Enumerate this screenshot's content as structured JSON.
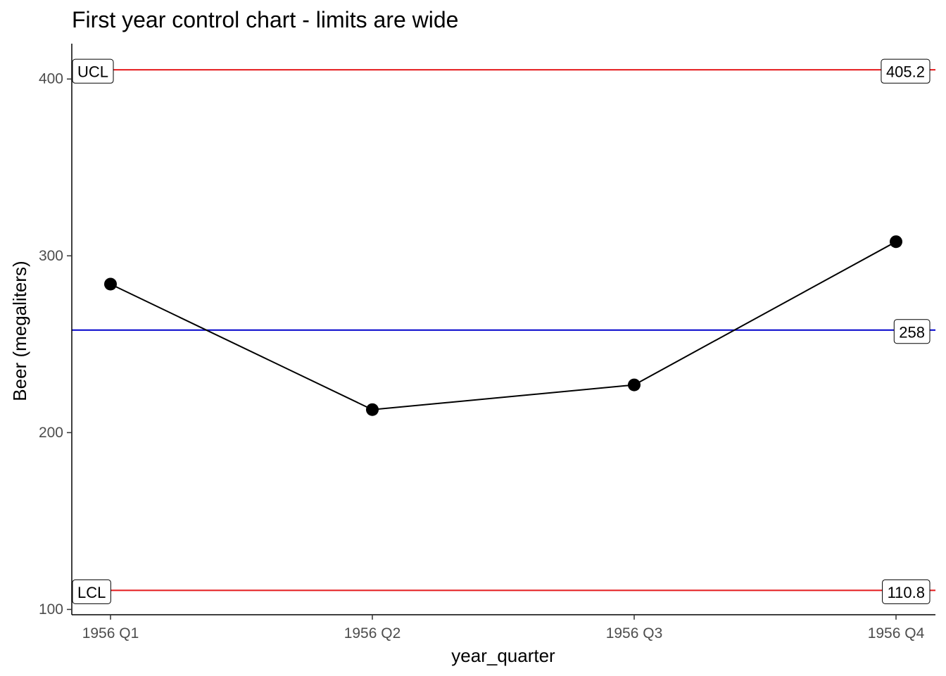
{
  "chart_data": {
    "type": "line",
    "title": "First year control chart - limits are wide",
    "xlabel": "year_quarter",
    "ylabel": "Beer (megaliters)",
    "categories": [
      "1956 Q1",
      "1956 Q2",
      "1956 Q3",
      "1956 Q4"
    ],
    "values": [
      284,
      213,
      227,
      308
    ],
    "ylim": [
      97,
      420
    ],
    "yticks": [
      100,
      200,
      300,
      400
    ],
    "grid": false,
    "reference_lines": [
      {
        "role": "ucl",
        "value": 405.2,
        "left_label": "UCL",
        "right_label": "405.2",
        "color": "#e41a1c"
      },
      {
        "role": "center",
        "value": 258,
        "left_label": "",
        "right_label": "258",
        "color": "#0000cc"
      },
      {
        "role": "lcl",
        "value": 110.8,
        "left_label": "LCL",
        "right_label": "110.8",
        "color": "#e41a1c"
      }
    ],
    "series_color": "#000000"
  }
}
